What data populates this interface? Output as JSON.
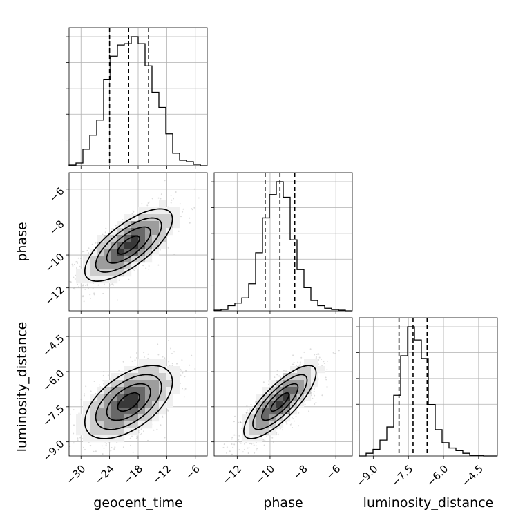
{
  "chart_data": {
    "type": "corner",
    "parameters": [
      "geocent_time",
      "phase",
      "luminosity_distance"
    ],
    "ranges": {
      "geocent_time": [
        -32.5,
        -3.5
      ],
      "phase": [
        -13.4,
        -5.0
      ],
      "luminosity_distance": [
        -9.6,
        -3.7
      ]
    },
    "ticks": {
      "geocent_time": [
        -30,
        -24,
        -18,
        -12,
        -6
      ],
      "phase": [
        -12,
        -10,
        -8,
        -6
      ],
      "luminosity_distance": [
        -9.0,
        -7.5,
        -6.0,
        -4.5
      ]
    },
    "tick_labels": {
      "geocent_time": [
        "−30",
        "−24",
        "−18",
        "−12",
        "−6"
      ],
      "phase": [
        "−12",
        "−10",
        "−8",
        "−6"
      ],
      "luminosity_distance": [
        "−9.0",
        "−7.5",
        "−6.0",
        "−4.5"
      ]
    },
    "quantiles": {
      "geocent_time": [
        -24.0,
        -20.0,
        -15.8
      ],
      "phase": [
        -10.3,
        -9.4,
        -8.5
      ],
      "luminosity_distance": [
        -7.9,
        -7.3,
        -6.7
      ]
    },
    "histograms": {
      "geocent_time": {
        "edges": [
          -32.5,
          -31.05,
          -29.6,
          -28.15,
          -26.7,
          -25.25,
          -23.8,
          -22.35,
          -20.9,
          -19.45,
          -18.0,
          -16.55,
          -15.1,
          -13.65,
          -12.2,
          -10.75,
          -9.3,
          -7.85,
          -6.4,
          -4.95,
          -3.5
        ],
        "counts": [
          0.005,
          0.02,
          0.12,
          0.22,
          0.33,
          0.62,
          0.79,
          0.87,
          0.88,
          0.93,
          0.88,
          0.72,
          0.53,
          0.42,
          0.23,
          0.09,
          0.04,
          0.03,
          0.01,
          0.0
        ]
      },
      "phase": {
        "edges": [
          -13.4,
          -12.98,
          -12.56,
          -12.14,
          -11.72,
          -11.3,
          -10.88,
          -10.46,
          -10.04,
          -9.62,
          -9.2,
          -8.78,
          -8.36,
          -7.94,
          -7.52,
          -7.1,
          -6.68,
          -6.26,
          -5.84,
          -5.42,
          -5.0
        ],
        "counts": [
          0.005,
          0.01,
          0.04,
          0.06,
          0.1,
          0.21,
          0.45,
          0.72,
          0.9,
          1.0,
          0.88,
          0.55,
          0.32,
          0.18,
          0.08,
          0.04,
          0.02,
          0.01,
          0.005,
          0.0
        ]
      },
      "luminosity_distance": {
        "edges": [
          -9.6,
          -9.305,
          -9.01,
          -8.715,
          -8.42,
          -8.125,
          -7.83,
          -7.535,
          -7.24,
          -6.945,
          -6.65,
          -6.355,
          -6.06,
          -5.765,
          -5.47,
          -5.175,
          -4.88,
          -4.585,
          -4.29,
          -3.995,
          -3.7
        ],
        "counts": [
          0.0,
          0.02,
          0.05,
          0.12,
          0.22,
          0.46,
          0.76,
          0.98,
          0.88,
          0.74,
          0.39,
          0.2,
          0.1,
          0.06,
          0.04,
          0.02,
          0.005,
          0.005,
          0.0,
          0.0
        ]
      }
    },
    "pairs": [
      {
        "x": "geocent_time",
        "y": "phase",
        "mean": [
          -20.0,
          -9.4
        ],
        "sd": [
          4.6,
          1.1
        ],
        "rho": 0.72
      },
      {
        "x": "geocent_time",
        "y": "luminosity_distance",
        "mean": [
          -20.0,
          -7.3
        ],
        "sd": [
          4.6,
          0.78
        ],
        "rho": 0.55
      },
      {
        "x": "phase",
        "y": "luminosity_distance",
        "mean": [
          -9.4,
          -7.3
        ],
        "sd": [
          1.1,
          0.78
        ],
        "rho": 0.8
      }
    ],
    "contour_levels": [
      0.5,
      1.0,
      1.5,
      2.0
    ],
    "grid": true
  }
}
